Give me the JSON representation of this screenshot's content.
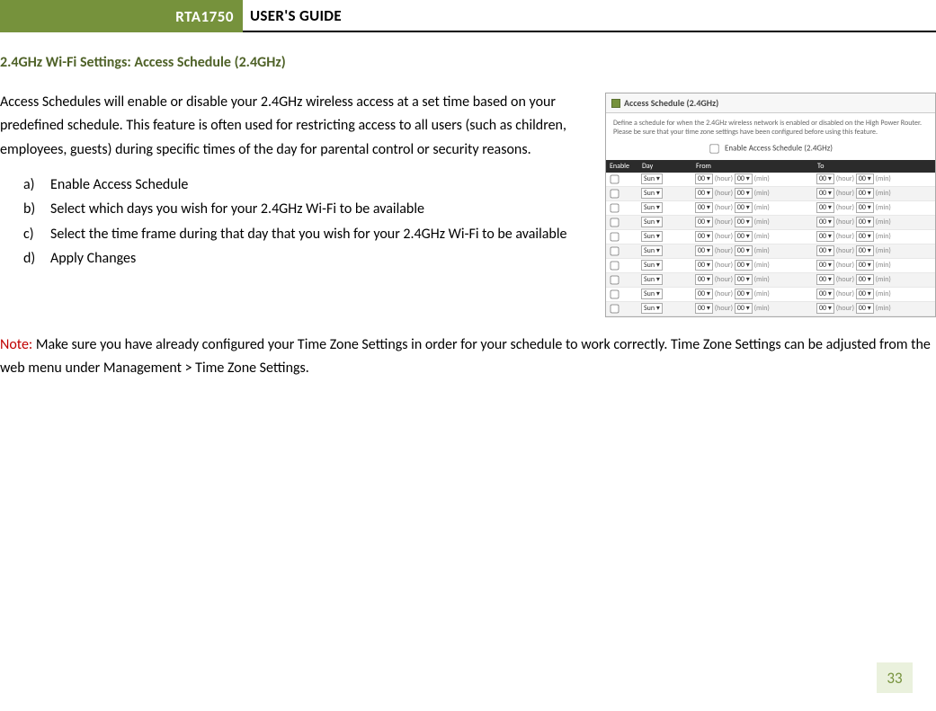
{
  "header": {
    "model": "RTA1750",
    "title": "USER'S GUIDE"
  },
  "section_title": "2.4GHz Wi-Fi Settings: Access Schedule (2.4GHz)",
  "intro": "Access Schedules will enable or disable your 2.4GHz wireless access at a set time based on your predefined schedule.  This feature is often used for restricting access to all users (such as children, employees, guests) during specific times of the day for parental control or security reasons.",
  "steps": [
    {
      "marker": "a)",
      "text": "Enable Access Schedule"
    },
    {
      "marker": "b)",
      "text": "Select which days you wish for your 2.4GHz Wi-Fi to be available"
    },
    {
      "marker": "c)",
      "text": "Select the time frame during that day that you wish for your 2.4GHz Wi-Fi to be available"
    },
    {
      "marker": "d)",
      "text": "Apply Changes"
    }
  ],
  "note": {
    "label": "Note:",
    "text": "  Make sure you have already configured your Time Zone Settings in order for your schedule to work correctly.  Time Zone Settings can be adjusted from the web menu under Management > Time Zone Settings."
  },
  "page_number": "33",
  "screenshot": {
    "title": "Access Schedule (2.4GHz)",
    "desc": "Define a schedule for when the 2.4GHz wireless network is enabled or disabled on the High Power Router. Please be sure that your time zone settings have been configured before using this feature.",
    "enable_label": "Enable Access Schedule (2.4GHz)",
    "columns": [
      "Enable",
      "Day",
      "From",
      "To"
    ],
    "row_count": 10,
    "day_value": "Sun",
    "hour_value": "00",
    "min_value": "00",
    "hour_label": "(hour)",
    "min_label": "(min)",
    "colors": {
      "accent_green": "#76923c",
      "header_dark": "#2b2b2b",
      "row_alt": "#f3f3f3",
      "border": "#aaaaaa"
    }
  }
}
